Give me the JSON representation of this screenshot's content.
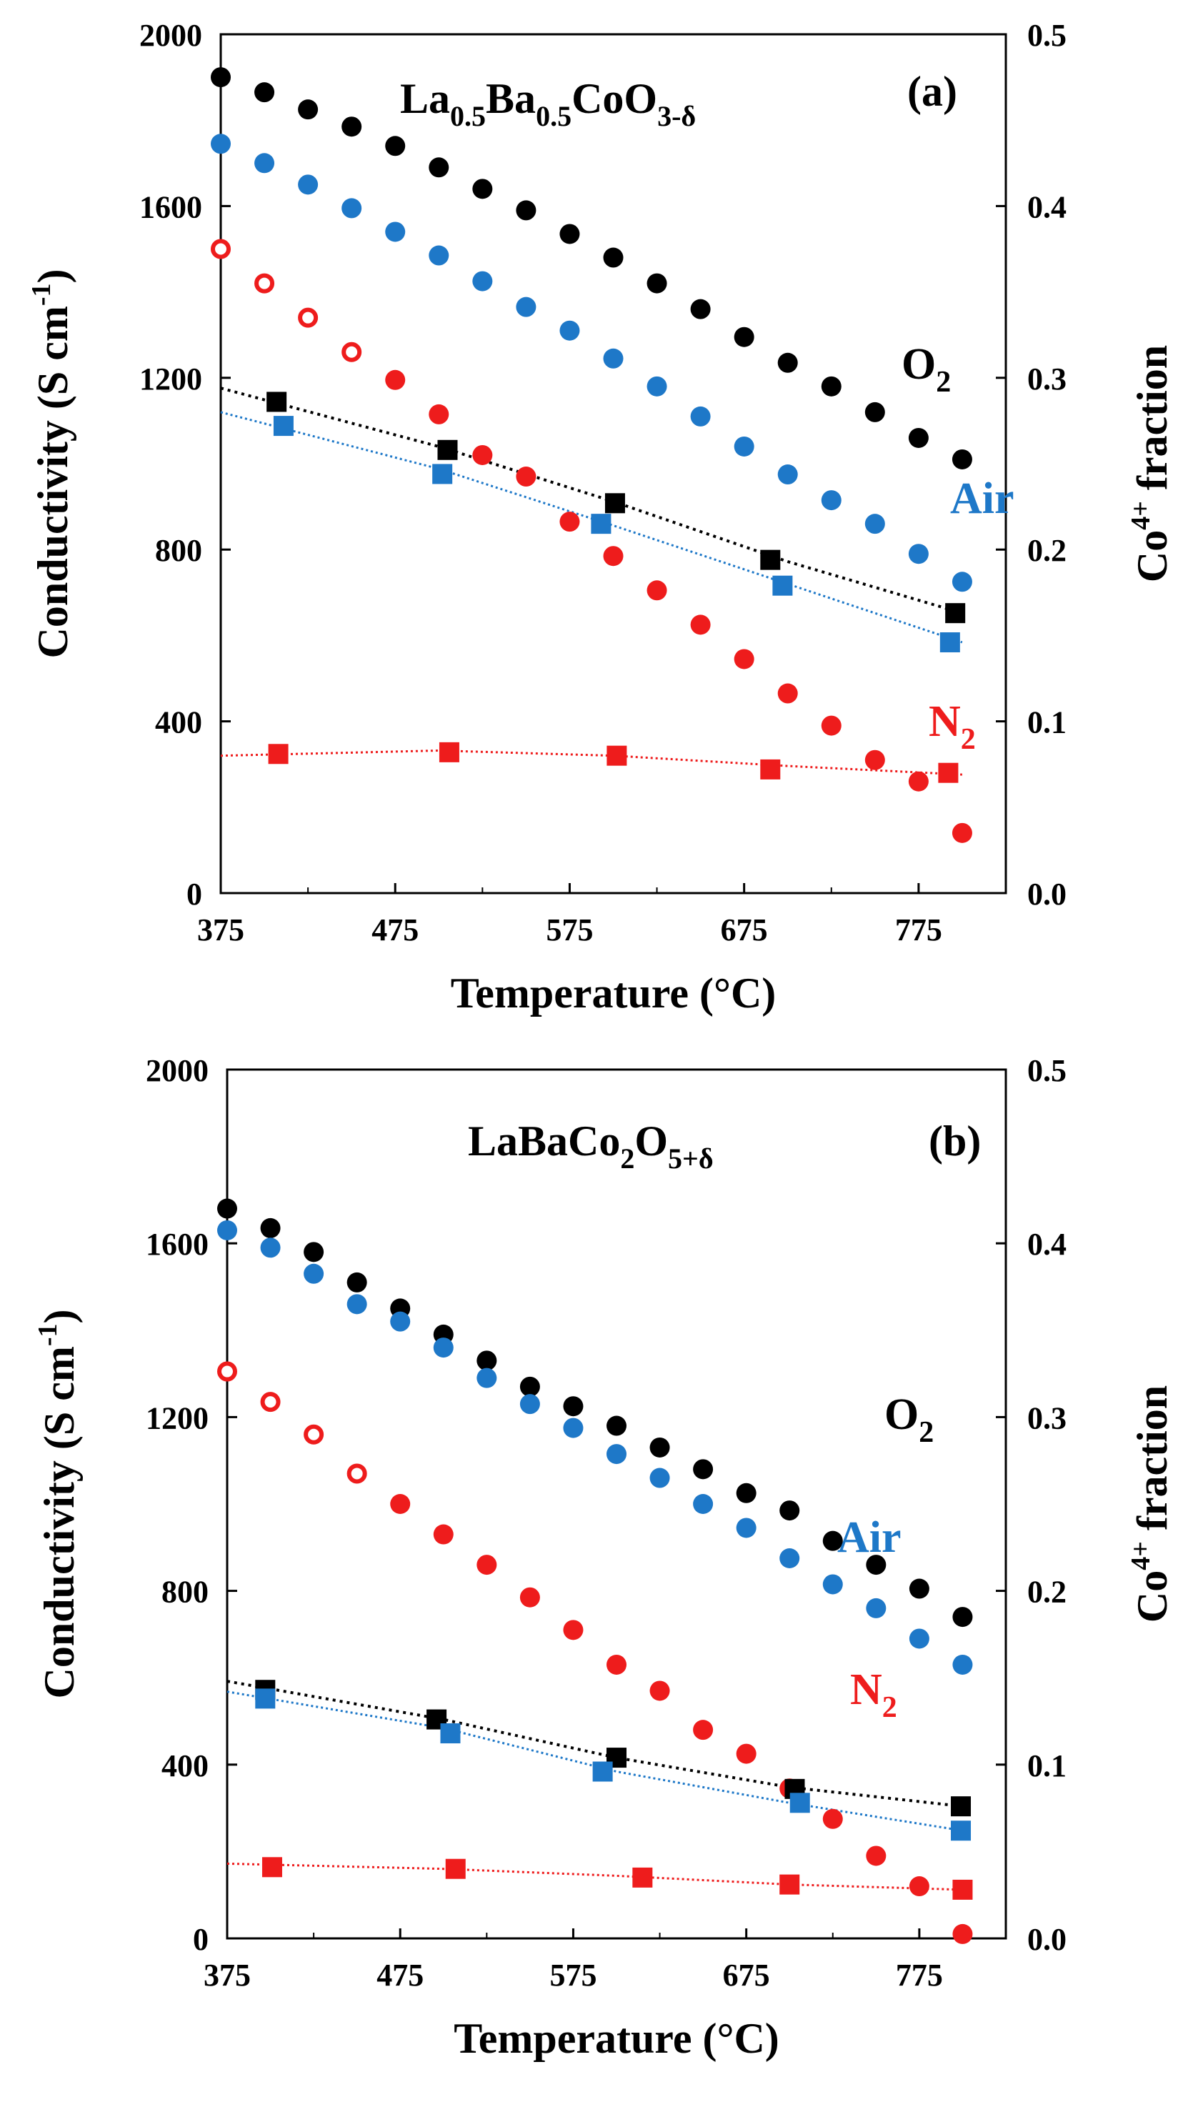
{
  "figure": {
    "note": "Two-panel conductivity vs temperature figure with Co4+ fraction on secondary axis"
  },
  "colors": {
    "O2": "#000000",
    "Air": "#1e78c8",
    "N2": "#ee1c1c"
  },
  "chart_data": [
    {
      "type": "scatter",
      "panel_label": "(a)",
      "title_parts": [
        {
          "t": "La",
          "s": "n"
        },
        {
          "t": "0.5",
          "s": "sub"
        },
        {
          "t": "Ba",
          "s": "n"
        },
        {
          "t": "0.5",
          "s": "sub"
        },
        {
          "t": "CoO",
          "s": "n"
        },
        {
          "t": "3-δ",
          "s": "sub"
        }
      ],
      "xlabel": "Temperature (°C)",
      "ylabel": {
        "main": "Conductivity (S cm",
        "sup": "-1",
        "end": ")"
      },
      "y2label": {
        "pre": "Co",
        "sup": "4+",
        "post": " fraction"
      },
      "xlim": [
        375,
        825
      ],
      "ylim": [
        0,
        2000
      ],
      "y2lim": [
        0.0,
        0.5
      ],
      "xticks": [
        "375",
        "475",
        "575",
        "675",
        "775"
      ],
      "yticks": [
        "0",
        "400",
        "800",
        "1200",
        "1600",
        "2000"
      ],
      "y2ticks": [
        "0.0",
        "0.1",
        "0.2",
        "0.3",
        "0.4",
        "0.5"
      ],
      "gas_labels": [
        {
          "text": "O",
          "sub": "2",
          "series": "O2"
        },
        {
          "text": "Air",
          "sub": "",
          "series": "Air"
        },
        {
          "text": "N",
          "sub": "2",
          "series": "N2"
        }
      ],
      "conductivity_series": [
        {
          "name": "O2",
          "x": [
            375,
            400,
            425,
            450,
            475,
            500,
            525,
            550,
            575,
            600,
            625,
            650,
            675,
            700,
            725,
            750,
            775,
            800
          ],
          "y": [
            1900,
            1865,
            1825,
            1785,
            1740,
            1690,
            1640,
            1590,
            1535,
            1480,
            1420,
            1360,
            1295,
            1235,
            1180,
            1120,
            1060,
            1010
          ],
          "hollow_count": 0
        },
        {
          "name": "Air",
          "x": [
            375,
            400,
            425,
            450,
            475,
            500,
            525,
            550,
            575,
            600,
            625,
            650,
            675,
            700,
            725,
            750,
            775,
            800
          ],
          "y": [
            1745,
            1700,
            1650,
            1595,
            1540,
            1485,
            1425,
            1365,
            1310,
            1245,
            1180,
            1110,
            1040,
            975,
            915,
            860,
            790,
            725
          ],
          "hollow_count": 0
        },
        {
          "name": "N2",
          "x": [
            375,
            400,
            425,
            450,
            475,
            500,
            525,
            550,
            575,
            600,
            625,
            650,
            675,
            700,
            725,
            750,
            775,
            800
          ],
          "y": [
            1500,
            1420,
            1340,
            1260,
            1195,
            1115,
            1020,
            970,
            865,
            785,
            705,
            625,
            545,
            465,
            390,
            310,
            260,
            140
          ],
          "hollow_count": 4
        }
      ],
      "co4_series": [
        {
          "name": "O2",
          "x": [
            407,
            505,
            601,
            690,
            796
          ],
          "y": [
            0.286,
            0.258,
            0.227,
            0.194,
            0.163
          ]
        },
        {
          "name": "Air",
          "x": [
            411,
            502,
            593,
            697,
            793
          ],
          "y": [
            0.272,
            0.244,
            0.215,
            0.179,
            0.146
          ]
        },
        {
          "name": "N2",
          "x": [
            408,
            506,
            602,
            690,
            792
          ],
          "y": [
            0.081,
            0.082,
            0.08,
            0.072,
            0.07
          ]
        }
      ],
      "co4_fit_series": [
        {
          "name": "O2",
          "x": [
            375,
            500,
            600,
            700,
            800
          ],
          "y": [
            0.294,
            0.26,
            0.228,
            0.193,
            0.163
          ]
        },
        {
          "name": "Air",
          "x": [
            375,
            500,
            600,
            700,
            800
          ],
          "y": [
            0.28,
            0.247,
            0.214,
            0.18,
            0.146
          ]
        },
        {
          "name": "N2",
          "x": [
            375,
            500,
            600,
            700,
            800
          ],
          "y": [
            0.08,
            0.083,
            0.08,
            0.074,
            0.069
          ]
        }
      ]
    },
    {
      "type": "scatter",
      "panel_label": "(b)",
      "title_parts": [
        {
          "t": "LaBaCo",
          "s": "n"
        },
        {
          "t": "2",
          "s": "sub"
        },
        {
          "t": "O",
          "s": "n"
        },
        {
          "t": "5+δ",
          "s": "sub"
        }
      ],
      "xlabel": "Temperature (°C)",
      "ylabel": {
        "main": "Conductivity (S cm",
        "sup": "-1",
        "end": ")"
      },
      "y2label": {
        "pre": "Co",
        "sup": "4+",
        "post": " fraction"
      },
      "xlim": [
        375,
        825
      ],
      "ylim": [
        0,
        2000
      ],
      "y2lim": [
        0.0,
        0.5
      ],
      "xticks": [
        "375",
        "475",
        "575",
        "675",
        "775"
      ],
      "yticks": [
        "0",
        "400",
        "800",
        "1200",
        "1600",
        "2000"
      ],
      "y2ticks": [
        "0.0",
        "0.1",
        "0.2",
        "0.3",
        "0.4",
        "0.5"
      ],
      "gas_labels": [
        {
          "text": "O",
          "sub": "2",
          "series": "O2"
        },
        {
          "text": "Air",
          "sub": "",
          "series": "Air"
        },
        {
          "text": "N",
          "sub": "2",
          "series": "N2"
        }
      ],
      "conductivity_series": [
        {
          "name": "O2",
          "x": [
            375,
            400,
            425,
            450,
            475,
            500,
            525,
            550,
            575,
            600,
            625,
            650,
            675,
            700,
            725,
            750,
            775,
            800
          ],
          "y": [
            1680,
            1635,
            1580,
            1510,
            1450,
            1390,
            1330,
            1270,
            1225,
            1180,
            1130,
            1080,
            1025,
            985,
            915,
            860,
            805,
            740
          ],
          "hollow_count": 0
        },
        {
          "name": "Air",
          "x": [
            375,
            400,
            425,
            450,
            475,
            500,
            525,
            550,
            575,
            600,
            625,
            650,
            675,
            700,
            725,
            750,
            775,
            800
          ],
          "y": [
            1630,
            1590,
            1530,
            1460,
            1420,
            1360,
            1290,
            1230,
            1175,
            1115,
            1060,
            1000,
            945,
            875,
            815,
            760,
            690,
            630
          ],
          "hollow_count": 0
        },
        {
          "name": "N2",
          "x": [
            375,
            400,
            425,
            450,
            475,
            500,
            525,
            550,
            575,
            600,
            625,
            650,
            675,
            700,
            725,
            750,
            775,
            800
          ],
          "y": [
            1305,
            1235,
            1160,
            1070,
            1000,
            930,
            860,
            785,
            710,
            630,
            570,
            480,
            425,
            345,
            275,
            190,
            120,
            10
          ],
          "hollow_count": 4
        }
      ],
      "co4_series": [
        {
          "name": "O2",
          "x": [
            397,
            496,
            600,
            703,
            799
          ],
          "y": [
            0.143,
            0.126,
            0.104,
            0.086,
            0.076
          ]
        },
        {
          "name": "Air",
          "x": [
            397,
            504,
            592,
            706,
            799
          ],
          "y": [
            0.138,
            0.118,
            0.096,
            0.078,
            0.062
          ]
        },
        {
          "name": "N2",
          "x": [
            401,
            507,
            615,
            700,
            800
          ],
          "y": [
            0.041,
            0.04,
            0.035,
            0.031,
            0.028
          ]
        }
      ],
      "co4_fit_series": [
        {
          "name": "O2",
          "x": [
            375,
            500,
            600,
            700,
            800
          ],
          "y": [
            0.148,
            0.126,
            0.104,
            0.087,
            0.076
          ]
        },
        {
          "name": "Air",
          "x": [
            375,
            500,
            600,
            700,
            800
          ],
          "y": [
            0.142,
            0.121,
            0.096,
            0.078,
            0.062
          ]
        },
        {
          "name": "N2",
          "x": [
            375,
            500,
            600,
            700,
            800
          ],
          "y": [
            0.043,
            0.04,
            0.036,
            0.031,
            0.028
          ]
        }
      ]
    }
  ]
}
